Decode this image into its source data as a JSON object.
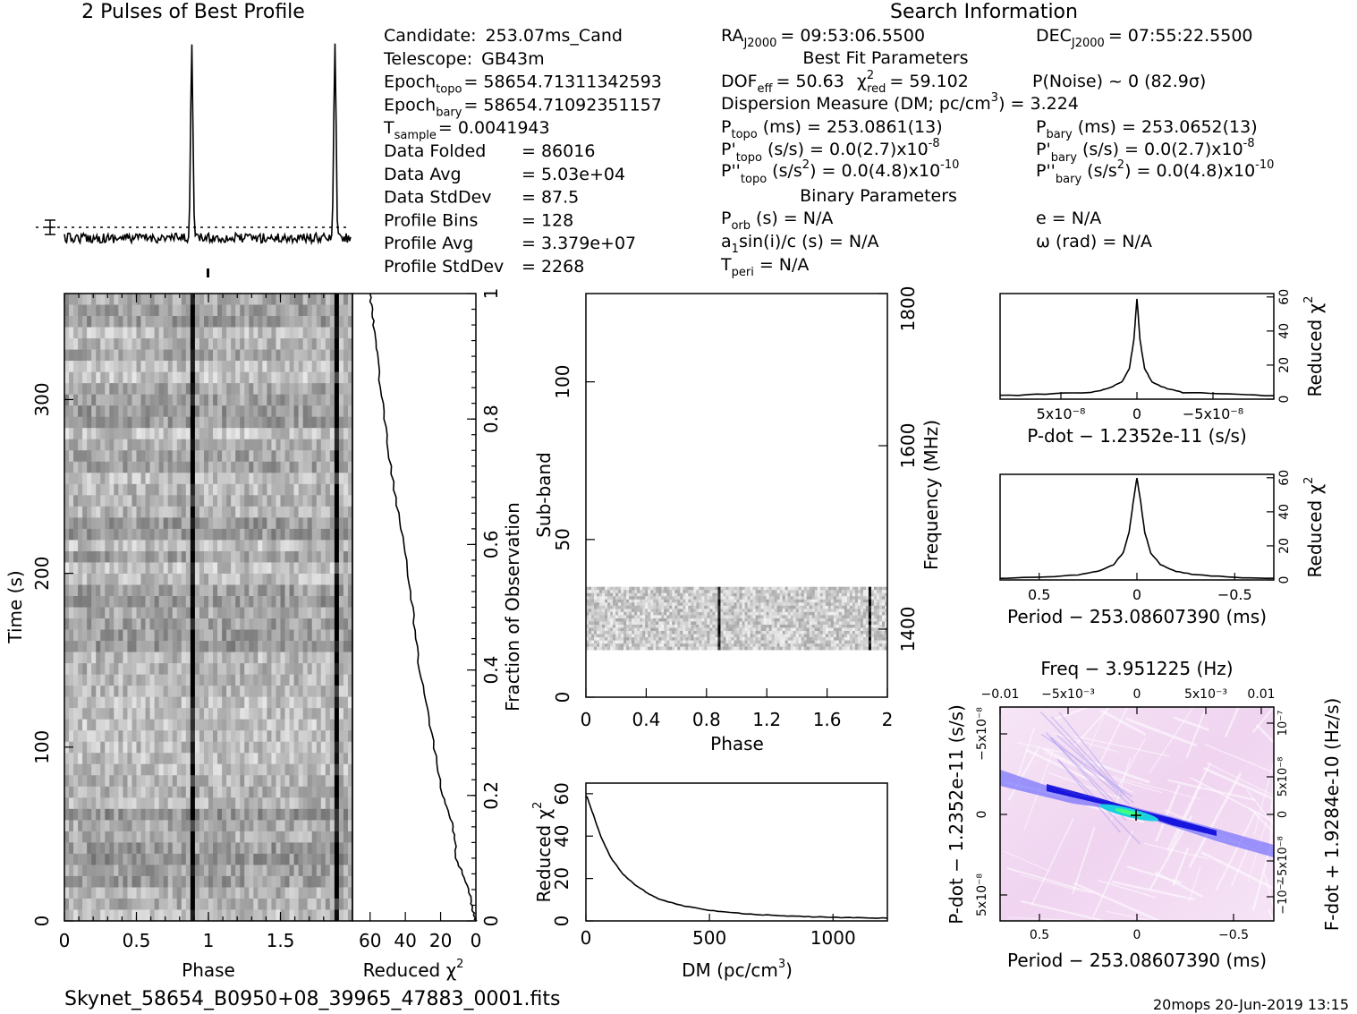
{
  "header": {
    "profile_title": "2 Pulses of Best Profile",
    "search_title": "Search Information",
    "best_fit_title": "Best Fit Parameters",
    "binary_title": "Binary Parameters"
  },
  "info_left": [
    {
      "label": "Candidate:",
      "value": "253.07ms_Cand"
    },
    {
      "label": "Telescope:",
      "value": "GB43m"
    },
    {
      "label": "Epoch",
      "sub": "topo",
      "value": "= 58654.71311342593"
    },
    {
      "label": "Epoch",
      "sub": "bary",
      "value": "= 58654.71092351157"
    },
    {
      "label": "T",
      "sub": "sample",
      "value": "=   0.0041943"
    },
    {
      "label": "Data Folded",
      "value": "=   86016"
    },
    {
      "label": "Data Avg",
      "value": "=   5.03e+04"
    },
    {
      "label": "Data StdDev",
      "value": "=   87.5"
    },
    {
      "label": "Profile Bins",
      "value": "=   128"
    },
    {
      "label": "Profile Avg",
      "value": "=   3.379e+07"
    },
    {
      "label": "Profile StdDev",
      "value": "=   2268"
    }
  ],
  "search": {
    "ra": "RA",
    "ra_sub": "J2000",
    "ra_value": "= 09:53:06.5500",
    "dec": "DEC",
    "dec_sub": "J2000",
    "dec_value": "= 07:55:22.5500",
    "dof": "DOF",
    "dof_sub": "eff",
    "dof_value": "= 50.63",
    "chi": "χ",
    "chi_sup": "2",
    "chi_sub": "red",
    "chi_value": "= 59.102",
    "pnoise": "P(Noise) ~ 0   (82.9σ)",
    "dm_line": "Dispersion Measure (DM; pc/cm",
    "dm_sup": "3",
    "dm_value": ") = 3.224",
    "ptopo": "P",
    "ptopo_sub": "topo",
    "ptopo_value": "(ms) =  253.0861(13)",
    "pbary": "P",
    "pbary_sub": "bary",
    "pbary_value": "(ms) =  253.0652(13)",
    "pdtopo": "P'",
    "pdtopo_sub": "topo",
    "pdtopo_value": "(s/s) = 0.0(2.7)x10",
    "pdtopo_exp": "-8",
    "pdbary": "P'",
    "pdbary_sub": "bary",
    "pdbary_value": "(s/s) = 0.0(2.7)x10",
    "pdbary_exp": "-8",
    "pddtopo": "P''",
    "pddtopo_sub": "topo",
    "pddtopo_value": "(s/s",
    "pddtopo_sup2": "2",
    "pddtopo_rest": ") = 0.0(4.8)x10",
    "pddtopo_exp": "-10",
    "pddbary": "P''",
    "pddbary_sub": "bary",
    "pddbary_value": "(s/s",
    "pddbary_sup2": "2",
    "pddbary_rest": ") = 0.0(4.8)x10",
    "pddbary_exp": "-10",
    "porb": "P",
    "porb_sub": "orb",
    "porb_value": "(s) = N/A",
    "ecc": "e = N/A",
    "a1": "a",
    "a1_sub": "1",
    "a1_value": "sin(i)/c (s) = N/A",
    "omega": "ω (rad) = N/A",
    "tperi": "T",
    "tperi_sub": "peri",
    "tperi_value": "= N/A"
  },
  "footer": {
    "filename": "Skynet_58654_B0950+08_39965_47883_0001.fits",
    "stamp": "20mops 20-Jun-2019 13:15"
  },
  "colors": {
    "ink": "#000000",
    "blue": "#1010ff",
    "cyan": "#20e0e0",
    "pink": "#f4d8f4"
  },
  "chart_data": [
    {
      "type": "line",
      "name": "profile",
      "title": "2 Pulses of Best Profile",
      "x_range": [
        0,
        2
      ],
      "pulse_phases": [
        0.89,
        1.89
      ],
      "peak_relative": 1.0
    },
    {
      "type": "heatmap",
      "name": "time-phase",
      "xlabel": "Phase",
      "ylabel": "Time (s)",
      "x_ticks": [
        "0",
        "0.5",
        "1",
        "1.5"
      ],
      "y_ticks": [
        "0",
        "100",
        "200",
        "300"
      ],
      "xlim": [
        0,
        2
      ],
      "ylim": [
        0,
        361
      ],
      "pulse_phases": [
        0.89,
        1.89
      ]
    },
    {
      "type": "line",
      "name": "reduced-chi2-vs-time",
      "xlabel": "Reduced χ²",
      "ylabel": "Fraction of Observation",
      "x_ticks": [
        "60",
        "40",
        "20",
        "0"
      ],
      "y_ticks": [
        "0",
        "0.2",
        "0.4",
        "0.6",
        "0.8",
        "1"
      ],
      "xlim": [
        70,
        0
      ],
      "ylim": [
        0,
        1
      ],
      "fraction": [
        0,
        0.02,
        0.05,
        0.1,
        0.15,
        0.2,
        0.3,
        0.4,
        0.5,
        0.6,
        0.7,
        0.8,
        0.9,
        0.95,
        1.0
      ],
      "values": [
        0,
        2,
        4,
        11,
        13,
        19,
        25,
        32,
        36,
        41,
        47,
        52,
        56,
        58,
        60
      ]
    },
    {
      "type": "heatmap",
      "name": "subband-phase",
      "xlabel": "Phase",
      "ylabel": "Sub-band",
      "y2label": "Frequency (MHz)",
      "x_ticks": [
        "0",
        "0.4",
        "0.8",
        "1.2",
        "1.6",
        "2"
      ],
      "y_ticks": [
        "0",
        "50",
        "100"
      ],
      "y2_ticks": [
        "1400",
        "1600",
        "1800"
      ],
      "xlim": [
        0,
        2
      ],
      "ylim": [
        0,
        128
      ],
      "band_range": [
        15,
        35
      ],
      "pulse_phases": [
        0.88,
        1.88
      ]
    },
    {
      "type": "line",
      "name": "dm-curve",
      "xlabel": "DM (pc/cm³)",
      "ylabel": "Reduced χ²",
      "x_ticks": [
        "0",
        "500",
        "1000"
      ],
      "y_ticks": [
        "0",
        "20",
        "40",
        "60"
      ],
      "xlim": [
        0,
        1220
      ],
      "ylim": [
        0,
        65
      ],
      "x": [
        3,
        30,
        60,
        100,
        150,
        200,
        250,
        300,
        400,
        500,
        600,
        700,
        800,
        900,
        1000,
        1100,
        1220
      ],
      "values": [
        59,
        50,
        40,
        30,
        22,
        17,
        13,
        10,
        7,
        5,
        3.8,
        3,
        2.4,
        2,
        1.7,
        1.5,
        1.3
      ]
    },
    {
      "type": "line",
      "name": "pdot-curve",
      "xlabel": "P-dot − 1.2352e-11 (s/s)",
      "ylabel": "Reduced χ²",
      "x_ticks": [
        "5x10⁻⁸",
        "0",
        "−5x10⁻⁸"
      ],
      "y_ticks": [
        "0",
        "20",
        "40",
        "60"
      ],
      "xlim": [
        9e-08,
        -9e-08
      ],
      "ylim": [
        0,
        62
      ],
      "x": [
        9e-08,
        6e-08,
        3e-08,
        2e-08,
        1e-08,
        5e-09,
        2e-09,
        0,
        -2e-09,
        -5e-09,
        -1e-08,
        -2e-08,
        -3e-08,
        -6e-08,
        -9e-08
      ],
      "values": [
        2,
        3,
        4,
        6,
        10,
        18,
        35,
        59,
        35,
        18,
        10,
        6,
        4,
        3,
        2
      ]
    },
    {
      "type": "line",
      "name": "period-curve",
      "xlabel": "Period − 253.08607390 (ms)",
      "ylabel": "Reduced χ²",
      "x_ticks": [
        "0.5",
        "0",
        "−0.5"
      ],
      "y_ticks": [
        "0",
        "20",
        "40",
        "60"
      ],
      "xlim": [
        0.7,
        -0.7
      ],
      "ylim": [
        0,
        62
      ],
      "x": [
        0.7,
        0.5,
        0.3,
        0.2,
        0.12,
        0.07,
        0.04,
        0.02,
        0,
        -0.02,
        -0.04,
        -0.07,
        -0.12,
        -0.2,
        -0.3,
        -0.5,
        -0.7
      ],
      "values": [
        1,
        1.5,
        3,
        5,
        9,
        16,
        28,
        45,
        60,
        45,
        28,
        16,
        9,
        5,
        3,
        1.5,
        1
      ]
    },
    {
      "type": "heatmap",
      "name": "period-pdot-plane",
      "title": "Freq − 3.951225 (Hz)",
      "xlabel": "Period − 253.08607390 (ms)",
      "ylabel": "P-dot − 1.2352e-11 (s/s)",
      "y2label": "F-dot + 1.9284e-10 (Hz/s)",
      "x_ticks": [
        "0.5",
        "0",
        "−0.5"
      ],
      "x2_ticks": [
        "−0.01",
        "−5x10⁻³",
        "0",
        "5x10⁻³",
        "0.01"
      ],
      "y_ticks": [
        "5x10⁻⁸",
        "0",
        "−5x10⁻⁸"
      ],
      "y2_ticks": [
        "−10⁻⁷",
        "−5x10⁻⁸",
        "0",
        "5x10⁻⁸",
        "10⁻⁷"
      ],
      "xlim": [
        0.7,
        -0.7
      ],
      "best_point": [
        0,
        0
      ]
    }
  ],
  "labels": {
    "phase": "Phase",
    "time": "Time (s)",
    "redchi": "Reduced χ",
    "redchi_sup": "2",
    "fraction": "Fraction of Observation",
    "subband": "Sub-band",
    "frequency": "Frequency (MHz)",
    "dm": "DM (pc/cm",
    "dm_sup": "3",
    "dm_close": ")",
    "pdot": "P-dot − 1.2352e-11 (s/s)",
    "period": "Period − 253.08607390 (ms)",
    "freq": "Freq − 3.951225 (Hz)",
    "fdot": "F-dot + 1.9284e-10 (Hz/s)"
  }
}
